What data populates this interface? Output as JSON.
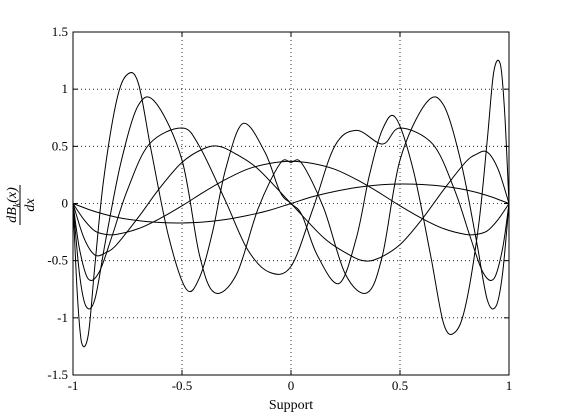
{
  "chart_data": {
    "type": "line",
    "xlabel": "Support",
    "ylabel_numerator": "dB",
    "ylabel_subscript": "k",
    "ylabel_arg": "(x)",
    "ylabel_denominator": "dx",
    "xlim": [
      -1,
      1
    ],
    "ylim": [
      -1.5,
      1.5
    ],
    "grid": true,
    "x_ticks": [
      -1,
      -0.5,
      0,
      0.5,
      1
    ],
    "x_tick_labels": [
      "-1",
      "-0.5",
      "0",
      "0.5",
      "1"
    ],
    "y_ticks": [
      -1.5,
      -1,
      -0.5,
      0,
      0.5,
      1,
      1.5
    ],
    "y_tick_labels": [
      "-1.5",
      "-1",
      "-0.5",
      "0",
      "0.5",
      "1",
      "1.5"
    ],
    "series": [
      {
        "x": [
          -1,
          -0.9,
          -0.8,
          -0.7,
          -0.6,
          -0.5,
          -0.4,
          -0.3,
          -0.2,
          -0.1,
          0,
          0.1,
          0.2,
          0.3,
          0.4,
          0.5,
          0.6,
          0.7,
          0.8,
          0.9,
          1
        ],
        "values": [
          0,
          -0.07,
          -0.12,
          -0.15,
          -0.166,
          -0.17,
          -0.162,
          -0.14,
          -0.105,
          -0.06,
          0,
          0.06,
          0.105,
          0.14,
          0.162,
          0.17,
          0.166,
          0.15,
          0.12,
          0.07,
          0
        ]
      },
      {
        "x": [
          -1,
          -0.95,
          -0.9,
          -0.85,
          -0.8,
          -0.7,
          -0.6,
          -0.5,
          -0.4,
          -0.3,
          -0.2,
          -0.1,
          0,
          0.1,
          0.2,
          0.3,
          0.4,
          0.5,
          0.6,
          0.7,
          0.8,
          0.85,
          0.9,
          0.95,
          1
        ],
        "values": [
          0,
          -0.14,
          -0.24,
          -0.27,
          -0.27,
          -0.22,
          -0.13,
          -0.02,
          0.1,
          0.21,
          0.3,
          0.35,
          0.37,
          0.35,
          0.3,
          0.21,
          0.1,
          -0.02,
          -0.13,
          -0.22,
          -0.27,
          -0.27,
          -0.24,
          -0.14,
          0
        ]
      },
      {
        "x": [
          -1,
          -0.95,
          -0.9,
          -0.85,
          -0.8,
          -0.7,
          -0.6,
          -0.5,
          -0.4,
          -0.33,
          -0.25,
          -0.15,
          0,
          0.15,
          0.25,
          0.33,
          0.4,
          0.5,
          0.6,
          0.7,
          0.8,
          0.85,
          0.9,
          0.95,
          1
        ],
        "values": [
          0,
          -0.3,
          -0.45,
          -0.43,
          -0.36,
          -0.12,
          0.14,
          0.36,
          0.48,
          0.5,
          0.43,
          0.3,
          0,
          -0.3,
          -0.43,
          -0.5,
          -0.48,
          -0.36,
          -0.14,
          0.12,
          0.36,
          0.43,
          0.45,
          0.3,
          0
        ]
      },
      {
        "x": [
          -1,
          -0.97,
          -0.93,
          -0.88,
          -0.82,
          -0.75,
          -0.65,
          -0.5,
          -0.42,
          -0.3,
          -0.2,
          -0.1,
          0,
          0.1,
          0.2,
          0.3,
          0.42,
          0.5,
          0.65,
          0.75,
          0.82,
          0.88,
          0.93,
          0.97,
          1
        ],
        "values": [
          0,
          -0.4,
          -0.66,
          -0.6,
          -0.28,
          0.12,
          0.52,
          0.66,
          0.5,
          0.02,
          -0.4,
          -0.6,
          -0.55,
          -0.05,
          0.5,
          0.64,
          0.52,
          0.66,
          0.52,
          0.12,
          -0.28,
          -0.6,
          -0.66,
          -0.4,
          0
        ],
        "note": ""
      },
      {
        "x": [
          -1,
          -0.97,
          -0.94,
          -0.9,
          -0.85,
          -0.78,
          -0.7,
          -0.62,
          -0.5,
          -0.42,
          -0.35,
          -0.25,
          -0.15,
          -0.05,
          0,
          0.05,
          0.15,
          0.25,
          0.35,
          0.42,
          0.5,
          0.62,
          0.7,
          0.78,
          0.85,
          0.9,
          0.94,
          0.97,
          1
        ],
        "values": [
          0,
          -0.62,
          -0.9,
          -0.84,
          -0.32,
          0.36,
          0.86,
          0.88,
          0.38,
          -0.45,
          -0.78,
          -0.62,
          -0.04,
          0.35,
          0.36,
          0.35,
          -0.04,
          -0.62,
          -0.78,
          -0.45,
          0.38,
          0.88,
          0.86,
          0.36,
          -0.32,
          -0.84,
          -0.9,
          -0.62,
          0
        ]
      },
      {
        "x": [
          -1,
          -0.98,
          -0.96,
          -0.93,
          -0.9,
          -0.86,
          -0.8,
          -0.75,
          -0.7,
          -0.64,
          -0.56,
          -0.48,
          -0.42,
          -0.36,
          -0.3,
          -0.22,
          -0.12,
          -0.05,
          0,
          0.05,
          0.12,
          0.22,
          0.3,
          0.36,
          0.42,
          0.48,
          0.56,
          0.64,
          0.7,
          0.75,
          0.8,
          0.86,
          0.9,
          0.93,
          0.96,
          0.98,
          1
        ],
        "values": [
          0,
          -0.8,
          -1.22,
          -1.15,
          -0.55,
          0.2,
          0.9,
          1.13,
          1.05,
          0.45,
          -0.3,
          -0.75,
          -0.65,
          -0.25,
          0.3,
          0.7,
          0.45,
          0.1,
          0,
          -0.1,
          -0.45,
          -0.7,
          -0.3,
          0.25,
          0.65,
          0.75,
          0.3,
          -0.45,
          -1.05,
          -1.13,
          -0.9,
          -0.2,
          0.55,
          1.15,
          1.22,
          0.8,
          0
        ]
      }
    ]
  }
}
